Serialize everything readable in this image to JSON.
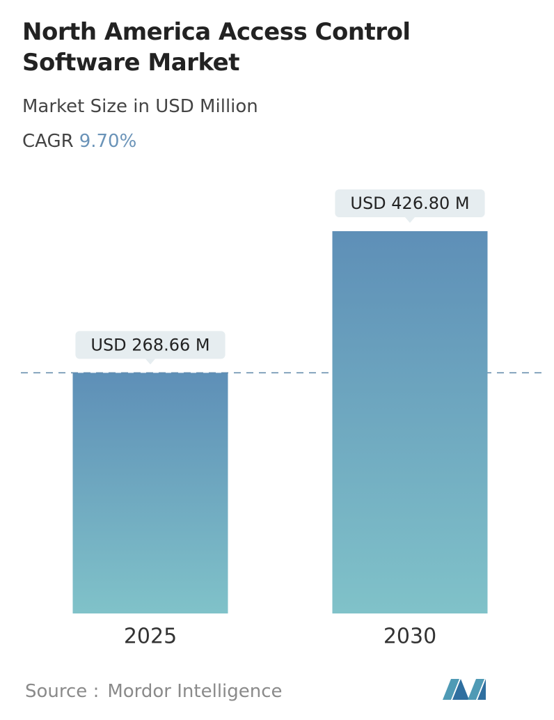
{
  "chart_data": {
    "type": "bar",
    "title": "North America Access Control Software Market",
    "subtitle": "Market Size in USD Million",
    "cagr": {
      "label": "CAGR",
      "value": "9.70%"
    },
    "categories": [
      "2025",
      "2030"
    ],
    "values": [
      268.66,
      426.8
    ],
    "value_labels": [
      "USD 268.66 M",
      "USD 426.80 M"
    ],
    "source": {
      "label": "Source :",
      "value": "Mordor Intelligence"
    }
  }
}
